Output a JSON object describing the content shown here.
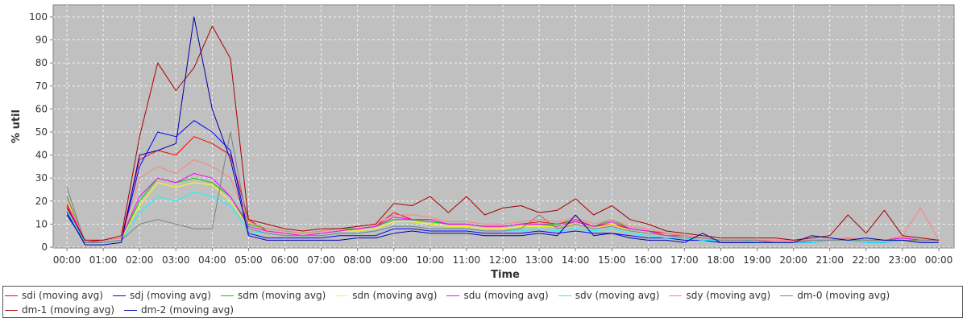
{
  "chart_data": {
    "type": "line",
    "title": "",
    "xlabel": "Time",
    "ylabel": "% util",
    "ylim": [
      0,
      100
    ],
    "yticks": [
      "0",
      "10",
      "20",
      "30",
      "40",
      "50",
      "60",
      "70",
      "80",
      "90",
      "100"
    ],
    "xticks": [
      "00:00",
      "01:00",
      "02:00",
      "03:00",
      "04:00",
      "05:00",
      "06:00",
      "07:00",
      "08:00",
      "09:00",
      "10:00",
      "11:00",
      "12:00",
      "13:00",
      "14:00",
      "15:00",
      "16:00",
      "17:00",
      "18:00",
      "19:00",
      "20:00",
      "21:00",
      "22:00",
      "23:00",
      "00:00"
    ],
    "x_unit": "hour of day",
    "grid": true,
    "legend_position": "bottom",
    "background_color": "#c0c0c0",
    "x": [
      0,
      0.5,
      1,
      1.5,
      2,
      2.5,
      3,
      3.5,
      4,
      4.5,
      5,
      5.5,
      6,
      6.5,
      7,
      7.5,
      8,
      8.5,
      9,
      9.5,
      10,
      10.5,
      11,
      11.5,
      12,
      12.5,
      13,
      13.5,
      14,
      14.5,
      15,
      15.5,
      16,
      16.5,
      17,
      17.5,
      18,
      18.5,
      19,
      19.5,
      20,
      20.5,
      21,
      21.5,
      22,
      22.5,
      23,
      23.5,
      24
    ],
    "series": [
      {
        "name": "sdi (moving avg)",
        "color": "#ff0000",
        "values": [
          18,
          2,
          3,
          4,
          38,
          42,
          40,
          48,
          45,
          40,
          12,
          7,
          6,
          5,
          6,
          7,
          8,
          9,
          15,
          12,
          12,
          10,
          10,
          9,
          9,
          10,
          11,
          10,
          12,
          9,
          10,
          8,
          7,
          6,
          5,
          4,
          3,
          3,
          3,
          2,
          2,
          3,
          3,
          4,
          3,
          3,
          4,
          3,
          3
        ]
      },
      {
        "name": "sdj (moving avg)",
        "color": "#0000ff",
        "values": [
          14,
          2,
          2,
          3,
          35,
          50,
          48,
          55,
          50,
          42,
          6,
          4,
          4,
          4,
          4,
          5,
          5,
          5,
          8,
          8,
          7,
          7,
          7,
          6,
          6,
          6,
          7,
          6,
          7,
          6,
          6,
          5,
          4,
          4,
          3,
          3,
          2,
          2,
          2,
          2,
          2,
          2,
          3,
          3,
          2,
          2,
          3,
          2,
          2
        ]
      },
      {
        "name": "sdm (moving avg)",
        "color": "#00cc00",
        "values": [
          22,
          3,
          3,
          4,
          20,
          30,
          28,
          30,
          28,
          22,
          10,
          8,
          7,
          6,
          7,
          8,
          8,
          9,
          12,
          12,
          11,
          10,
          10,
          9,
          9,
          10,
          10,
          10,
          11,
          9,
          12,
          8,
          7,
          5,
          5,
          4,
          3,
          3,
          3,
          3,
          3,
          3,
          3,
          4,
          3,
          3,
          4,
          3,
          3
        ]
      },
      {
        "name": "sdn (moving avg)",
        "color": "#ffff00",
        "values": [
          20,
          3,
          3,
          4,
          18,
          28,
          26,
          28,
          27,
          20,
          9,
          7,
          6,
          5,
          6,
          7,
          7,
          8,
          11,
          11,
          10,
          9,
          9,
          8,
          8,
          9,
          9,
          9,
          10,
          8,
          10,
          7,
          6,
          5,
          4,
          4,
          3,
          3,
          3,
          3,
          3,
          3,
          3,
          3,
          3,
          3,
          3,
          3,
          3
        ]
      },
      {
        "name": "sdu (moving avg)",
        "color": "#ff00ff",
        "values": [
          19,
          3,
          3,
          4,
          22,
          30,
          28,
          32,
          30,
          22,
          9,
          7,
          6,
          5,
          6,
          7,
          8,
          9,
          13,
          12,
          12,
          10,
          10,
          9,
          9,
          10,
          10,
          9,
          11,
          9,
          11,
          8,
          7,
          5,
          5,
          4,
          3,
          3,
          3,
          3,
          3,
          3,
          3,
          4,
          3,
          3,
          4,
          3,
          3
        ]
      },
      {
        "name": "sdv (moving avg)",
        "color": "#00ffff",
        "values": [
          16,
          2,
          2,
          3,
          15,
          22,
          20,
          24,
          22,
          18,
          7,
          6,
          5,
          5,
          5,
          6,
          6,
          7,
          9,
          9,
          8,
          8,
          8,
          7,
          7,
          7,
          8,
          7,
          8,
          7,
          8,
          6,
          5,
          4,
          4,
          3,
          3,
          3,
          2,
          2,
          2,
          2,
          3,
          3,
          2,
          2,
          3,
          2,
          2
        ]
      },
      {
        "name": "sdy (moving avg)",
        "color": "#ff8080",
        "values": [
          21,
          3,
          3,
          4,
          30,
          35,
          32,
          38,
          35,
          30,
          11,
          8,
          7,
          6,
          7,
          8,
          9,
          10,
          14,
          14,
          13,
          11,
          11,
          10,
          10,
          11,
          12,
          11,
          13,
          10,
          12,
          9,
          8,
          6,
          5,
          4,
          3,
          3,
          3,
          3,
          3,
          3,
          3,
          4,
          3,
          3,
          5,
          17,
          3
        ]
      },
      {
        "name": "dm-0 (moving avg)",
        "color": "#808080",
        "values": [
          26,
          2,
          2,
          3,
          10,
          12,
          10,
          8,
          8,
          50,
          8,
          6,
          5,
          5,
          5,
          6,
          6,
          7,
          9,
          9,
          8,
          8,
          8,
          7,
          7,
          8,
          14,
          8,
          10,
          8,
          9,
          7,
          6,
          5,
          4,
          4,
          3,
          3,
          3,
          2,
          2,
          3,
          3,
          3,
          3,
          3,
          3,
          3,
          3
        ]
      },
      {
        "name": "dm-1 (moving avg)",
        "color": "#aa0000",
        "values": [
          17,
          3,
          3,
          5,
          48,
          80,
          68,
          78,
          96,
          82,
          12,
          10,
          8,
          7,
          8,
          8,
          9,
          10,
          19,
          18,
          22,
          15,
          22,
          14,
          17,
          18,
          15,
          16,
          21,
          14,
          18,
          12,
          10,
          7,
          6,
          5,
          4,
          4,
          4,
          4,
          3,
          4,
          5,
          14,
          6,
          16,
          5,
          4,
          3
        ]
      },
      {
        "name": "dm-2 (moving avg)",
        "color": "#0000aa",
        "values": [
          15,
          1,
          1,
          2,
          40,
          42,
          45,
          100,
          60,
          38,
          5,
          3,
          3,
          3,
          3,
          3,
          4,
          4,
          6,
          7,
          6,
          6,
          6,
          5,
          5,
          5,
          6,
          5,
          14,
          5,
          6,
          4,
          3,
          3,
          2,
          6,
          2,
          2,
          2,
          2,
          2,
          5,
          4,
          3,
          4,
          3,
          3,
          2,
          2
        ]
      }
    ]
  }
}
